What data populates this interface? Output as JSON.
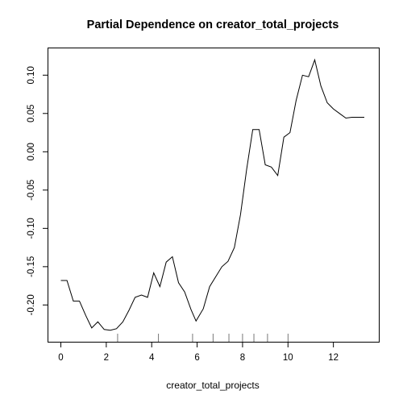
{
  "chart_data": {
    "type": "line",
    "title": "Partial Dependence on creator_total_projects",
    "xlabel": "creator_total_projects",
    "ylabel": "",
    "xlim": [
      -0.55,
      14.0
    ],
    "ylim": [
      -0.248,
      0.135
    ],
    "xticks": [
      0,
      2,
      4,
      6,
      8,
      10,
      12
    ],
    "yticks": [
      -0.2,
      -0.15,
      -0.1,
      -0.05,
      0.0,
      0.05,
      0.1
    ],
    "ytick_labels": [
      "-0.20",
      "-0.15",
      "-0.10",
      "-0.05",
      "0.00",
      "0.05",
      "0.10"
    ],
    "grid": false,
    "legend": "none",
    "series": [
      {
        "x": [
          0.0,
          0.27,
          0.55,
          0.82,
          1.1,
          1.36,
          1.63,
          1.91,
          2.18,
          2.45,
          2.73,
          3.0,
          3.27,
          3.55,
          3.82,
          4.09,
          4.36,
          4.64,
          4.91,
          5.18,
          5.45,
          5.73,
          5.95,
          6.27,
          6.55,
          6.82,
          7.09,
          7.36,
          7.64,
          7.91,
          8.18,
          8.45,
          8.73,
          9.0,
          9.27,
          9.55,
          9.82,
          10.09,
          10.36,
          10.64,
          10.91,
          11.18,
          11.45,
          11.73,
          12.0,
          12.27,
          12.55,
          12.82,
          13.09,
          13.36
        ],
        "y": [
          -0.168,
          -0.168,
          -0.195,
          -0.195,
          -0.214,
          -0.23,
          -0.222,
          -0.232,
          -0.233,
          -0.231,
          -0.222,
          -0.207,
          -0.19,
          -0.187,
          -0.19,
          -0.158,
          -0.176,
          -0.144,
          -0.137,
          -0.171,
          -0.183,
          -0.206,
          -0.221,
          -0.205,
          -0.176,
          -0.163,
          -0.15,
          -0.143,
          -0.125,
          -0.082,
          -0.023,
          0.029,
          0.029,
          -0.017,
          -0.02,
          -0.031,
          0.019,
          0.025,
          0.067,
          0.1,
          0.098,
          0.12,
          0.086,
          0.064,
          0.056,
          0.05,
          0.044,
          0.045,
          0.045,
          0.045
        ]
      }
    ],
    "rug_x": [
      2.5,
      4.3,
      5.8,
      6.7,
      7.4,
      8.0,
      8.5,
      9.1,
      10.0
    ]
  }
}
